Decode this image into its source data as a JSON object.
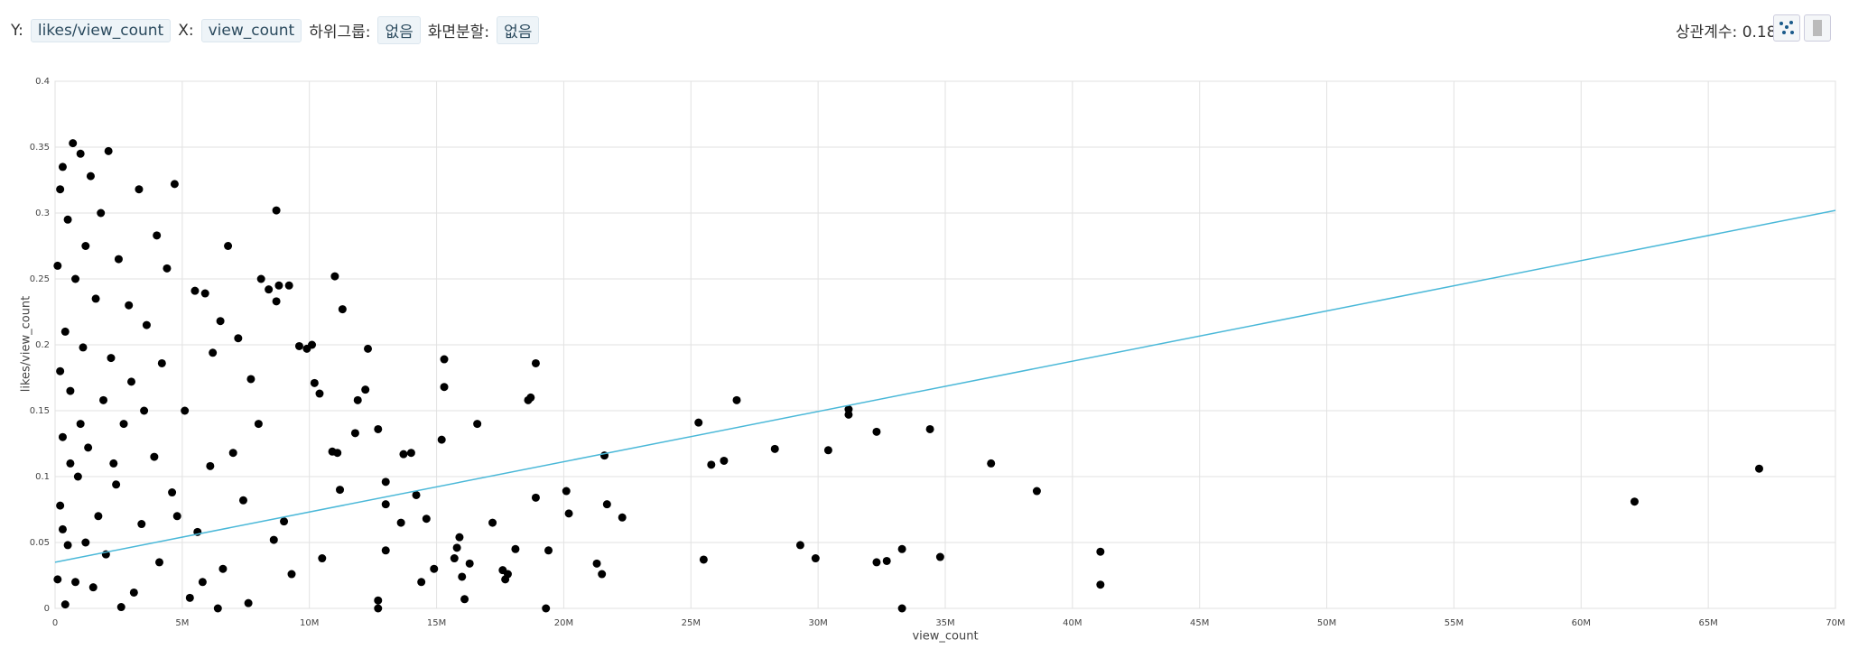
{
  "header": {
    "y_label": "Y:",
    "y_value": "likes/view_count",
    "x_label": "X:",
    "x_value": "view_count",
    "subgroup_label": "하위그룹:",
    "subgroup_value": "없음",
    "split_label": "화면분할:",
    "split_value": "없음",
    "correlation_label": "상관계수:",
    "correlation": 0.18
  },
  "chart_data": {
    "type": "scatter",
    "xlabel": "view_count",
    "ylabel": "likes/view_count",
    "color": "#000000",
    "grid": true,
    "xlim": [
      0,
      70000000.0
    ],
    "ylim": [
      0,
      0.4
    ],
    "xticks": [
      0,
      {
        "value": 5000000.0,
        "label": "5M"
      },
      {
        "value": 10000000.0,
        "label": "10M"
      },
      {
        "value": 15000000.0,
        "label": "15M"
      },
      {
        "value": 20000000.0,
        "label": "20M"
      },
      {
        "value": 25000000.0,
        "label": "25M"
      },
      {
        "value": 30000000.0,
        "label": "30M"
      },
      {
        "value": 35000000.0,
        "label": "35M"
      },
      {
        "value": 40000000.0,
        "label": "40M"
      },
      {
        "value": 45000000.0,
        "label": "45M"
      },
      {
        "value": 50000000.0,
        "label": "50M"
      },
      {
        "value": 55000000.0,
        "label": "55M"
      },
      {
        "value": 60000000.0,
        "label": "60M"
      },
      {
        "value": 65000000.0,
        "label": "65M"
      },
      {
        "value": 70000000.0,
        "label": "70M"
      }
    ],
    "yticks": [
      0,
      0.05,
      0.1,
      0.15,
      0.2,
      0.25,
      0.3,
      0.35,
      0.4
    ],
    "x": [
      67000000.0,
      62100000.0,
      41100000.0,
      41100000.0,
      38600000.0,
      36800000.0,
      34800000.0,
      34400000.0,
      33300000.0,
      33300000.0,
      32300000.0,
      32300000.0,
      32700000.0,
      31200000.0,
      31200000.0,
      30400000.0,
      29900000.0,
      29300000.0,
      28300000.0,
      26800000.0,
      26300000.0,
      25800000.0,
      25500000.0,
      25300000.0,
      22300000.0,
      21700000.0,
      21600000.0,
      21500000.0,
      21300000.0,
      20200000.0,
      20100000.0,
      19400000.0,
      19300000.0,
      18900000.0,
      18900000.0,
      18700000.0,
      18600000.0,
      18100000.0,
      17800000.0,
      17700000.0,
      17600000.0,
      17200000.0,
      16600000.0,
      16300000.0,
      16100000.0,
      16000000.0,
      15800000.0,
      15900000.0,
      15700000.0,
      15300000.0,
      15300000.0,
      15200000.0,
      14900000.0,
      14600000.0,
      14400000.0,
      14200000.0,
      14000000.0,
      13700000.0,
      13600000.0,
      13000000.0,
      13000000.0,
      13000000.0,
      12700000.0,
      12700000.0,
      12700000.0,
      12300000.0,
      12200000.0,
      11900000.0,
      11800000.0,
      11300000.0,
      11000000.0,
      11200000.0,
      11100000.0,
      10900000.0,
      10500000.0,
      10100000.0,
      9900000.0,
      9600000.0,
      10200000.0,
      10400000.0,
      8800000.0,
      9200000.0,
      8700000.0,
      8700000.0,
      8400000.0,
      8100000.0,
      7700000.0,
      7200000.0,
      6800000.0,
      6500000.0,
      6200000.0,
      5900000.0,
      5500000.0,
      4700000.0,
      4400000.0,
      4000000.0,
      3300000.0,
      2100000.0,
      1000000.0,
      700000.0,
      300000.0,
      200000.0,
      1400000.0,
      1800000.0,
      500000.0,
      1200000.0,
      2500000.0,
      800000.0,
      1600000.0,
      2900000.0,
      3600000.0,
      400000.0,
      1100000.0,
      2200000.0,
      4200000.0,
      3000000.0,
      600000.0,
      1900000.0,
      5100000.0,
      2700000.0,
      300000.0,
      1300000.0,
      3900000.0,
      6100000.0,
      900000.0,
      2400000.0,
      4600000.0,
      7400000.0,
      200000.0,
      1700000.0,
      3400000.0,
      5600000.0,
      8600000.0,
      500000.0,
      2000000.0,
      4100000.0,
      6600000.0,
      9300000.0,
      100000.0,
      1500000.0,
      3100000.0,
      5300000.0,
      7600000.0,
      400000.0,
      2600000.0,
      6400000.0,
      100000.0,
      200000.0,
      300000.0,
      1000000.0,
      600000.0,
      1200000.0,
      800000.0,
      2300000.0,
      3500000.0,
      4800000.0,
      5800000.0,
      7000000.0,
      8000000.0,
      9000000.0
    ],
    "values": [
      0.106,
      0.081,
      0.043,
      0.018,
      0.089,
      0.11,
      0.039,
      0.136,
      0.045,
      0.0,
      0.134,
      0.035,
      0.036,
      0.151,
      0.147,
      0.12,
      0.038,
      0.048,
      0.121,
      0.158,
      0.112,
      0.109,
      0.037,
      0.141,
      0.069,
      0.079,
      0.116,
      0.026,
      0.034,
      0.072,
      0.089,
      0.044,
      0.0,
      0.186,
      0.084,
      0.16,
      0.158,
      0.045,
      0.026,
      0.022,
      0.029,
      0.065,
      0.14,
      0.034,
      0.007,
      0.024,
      0.046,
      0.054,
      0.038,
      0.189,
      0.168,
      0.128,
      0.03,
      0.068,
      0.02,
      0.086,
      0.118,
      0.117,
      0.065,
      0.096,
      0.079,
      0.044,
      0.136,
      0.006,
      0.0,
      0.197,
      0.166,
      0.158,
      0.133,
      0.227,
      0.252,
      0.09,
      0.118,
      0.119,
      0.038,
      0.2,
      0.197,
      0.199,
      0.171,
      0.163,
      0.245,
      0.245,
      0.233,
      0.302,
      0.242,
      0.25,
      0.174,
      0.205,
      0.275,
      0.218,
      0.194,
      0.239,
      0.241,
      0.322,
      0.258,
      0.283,
      0.318,
      0.347,
      0.345,
      0.353,
      0.335,
      0.318,
      0.328,
      0.3,
      0.295,
      0.275,
      0.265,
      0.25,
      0.235,
      0.23,
      0.215,
      0.21,
      0.198,
      0.19,
      0.186,
      0.172,
      0.165,
      0.158,
      0.15,
      0.14,
      0.13,
      0.122,
      0.115,
      0.108,
      0.1,
      0.094,
      0.088,
      0.082,
      0.078,
      0.07,
      0.064,
      0.058,
      0.052,
      0.048,
      0.041,
      0.035,
      0.03,
      0.026,
      0.022,
      0.016,
      0.012,
      0.008,
      0.004,
      0.003,
      0.001,
      0.0,
      0.26,
      0.18,
      0.06,
      0.14,
      0.11,
      0.05,
      0.02,
      0.11,
      0.15,
      0.07,
      0.02,
      0.118,
      0.14,
      0.066
    ],
    "trendline": {
      "x": [
        0,
        70000000.0
      ],
      "y": [
        0.035,
        0.302
      ],
      "color": "#4ab8d8"
    }
  }
}
